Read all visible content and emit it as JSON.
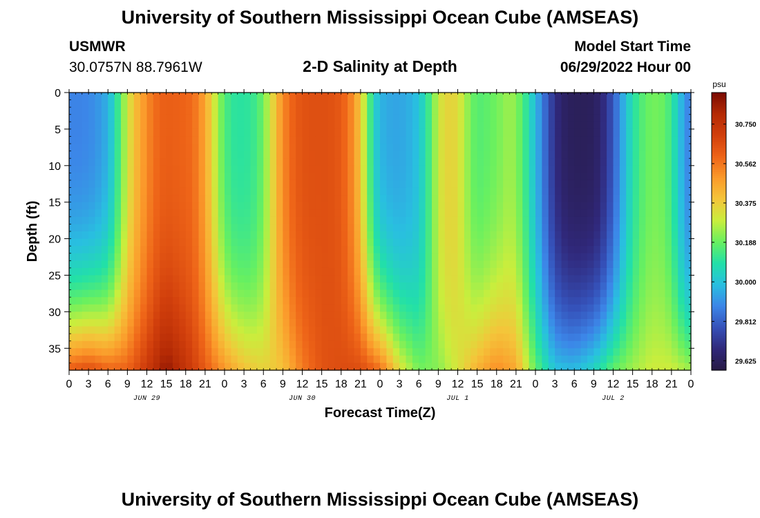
{
  "header": {
    "title": "University of Southern Mississippi Ocean Cube (AMSEAS)",
    "station_name": "USMWR",
    "station_coords": "30.0757N  88.7961W",
    "plot_title": "2-D Salinity at Depth",
    "model_start_label": "Model Start Time",
    "model_start_value": "06/29/2022 Hour 00"
  },
  "footer": {
    "title": "University of Southern Mississippi Ocean Cube (AMSEAS)"
  },
  "colors": {
    "colormap": [
      "#271a45",
      "#30287a",
      "#3551b9",
      "#3c86e8",
      "#29bfe0",
      "#22e0a8",
      "#68f060",
      "#c9ee3d",
      "#f4c53a",
      "#fb9a2b",
      "#ee6418",
      "#d13f0c",
      "#b42a05",
      "#7a0b02"
    ]
  },
  "chart_data": {
    "type": "heatmap",
    "title": "2-D Salinity at Depth",
    "xlabel": "Forecast Time(Z)",
    "ylabel": "Depth (ft)",
    "x_range_hours": [
      0,
      96
    ],
    "y_range_ft": [
      0,
      38
    ],
    "x_ticks_hours": [
      0,
      3,
      6,
      9,
      12,
      15,
      18,
      21,
      24,
      27,
      30,
      33,
      36,
      39,
      42,
      45,
      48,
      51,
      54,
      57,
      60,
      63,
      66,
      69,
      72,
      75,
      78,
      81,
      84,
      87,
      90,
      93,
      96
    ],
    "x_tick_labels": [
      "0",
      "3",
      "6",
      "9",
      "12",
      "15",
      "18",
      "21",
      "0",
      "3",
      "6",
      "9",
      "12",
      "15",
      "18",
      "21",
      "0",
      "3",
      "6",
      "9",
      "12",
      "15",
      "18",
      "21",
      "0",
      "3",
      "6",
      "9",
      "12",
      "15",
      "18",
      "21",
      "0"
    ],
    "date_labels": [
      {
        "hour": 12,
        "label": "JUN 29"
      },
      {
        "hour": 36,
        "label": "JUN 30"
      },
      {
        "hour": 60,
        "label": "JUL 1"
      },
      {
        "hour": 84,
        "label": "JUL 2"
      }
    ],
    "y_ticks_ft": [
      0,
      5,
      10,
      15,
      20,
      25,
      30,
      35
    ],
    "y_tick_labels": [
      "0",
      "5",
      "10",
      "15",
      "20",
      "25",
      "30",
      "35"
    ],
    "colorbar": {
      "unit": "psu",
      "range": [
        29.58,
        30.9
      ],
      "tick_values": [
        29.625,
        29.812,
        30.0,
        30.188,
        30.375,
        30.562,
        30.75
      ],
      "tick_labels": [
        "29.625",
        "29.812",
        "30.000",
        "30.188",
        "30.375",
        "30.562",
        "30.750"
      ]
    },
    "surface_profile": {
      "hours": [
        0,
        2,
        4,
        6,
        7,
        8,
        9,
        10,
        11,
        12,
        13,
        14,
        15,
        16,
        17,
        18,
        19,
        20,
        21,
        22,
        23,
        24,
        25,
        26,
        27,
        28,
        29,
        30,
        31,
        32,
        33,
        34,
        35,
        36,
        37,
        38,
        39,
        40,
        41,
        42,
        43,
        44,
        45,
        46,
        47,
        48,
        49,
        50,
        51,
        52,
        53,
        54,
        55,
        56,
        57,
        58,
        59,
        60,
        61,
        62,
        63,
        64,
        65,
        66,
        67,
        68,
        69,
        70,
        71,
        72,
        73,
        74,
        75,
        76,
        77,
        78,
        79,
        80,
        81,
        82,
        83,
        84,
        85,
        86,
        87,
        88,
        89,
        90,
        91,
        92,
        93,
        94,
        95,
        96
      ],
      "values": [
        29.88,
        29.88,
        29.9,
        29.96,
        30.06,
        30.18,
        30.3,
        30.4,
        30.46,
        30.52,
        30.57,
        30.6,
        30.61,
        30.61,
        30.6,
        30.6,
        30.58,
        30.54,
        30.46,
        30.36,
        30.24,
        30.16,
        30.11,
        30.1,
        30.1,
        30.11,
        30.14,
        30.2,
        30.3,
        30.42,
        30.52,
        30.58,
        30.62,
        30.64,
        30.65,
        30.65,
        30.65,
        30.65,
        30.64,
        30.62,
        30.57,
        30.5,
        30.38,
        30.22,
        30.05,
        29.97,
        29.95,
        29.94,
        29.94,
        29.95,
        29.97,
        30.0,
        30.08,
        30.18,
        30.3,
        30.35,
        30.36,
        30.34,
        30.27,
        30.2,
        30.16,
        30.17,
        30.18,
        30.2,
        30.22,
        30.25,
        30.22,
        30.16,
        30.07,
        29.98,
        29.88,
        29.78,
        29.7,
        29.65,
        29.63,
        29.62,
        29.62,
        29.62,
        29.63,
        29.66,
        29.72,
        29.8,
        29.9,
        30.0,
        30.08,
        30.14,
        30.18,
        30.2,
        30.2,
        30.18,
        30.12,
        30.02,
        29.92,
        29.86
      ]
    },
    "bottom_profile": {
      "hours": [
        0,
        3,
        6,
        9,
        12,
        15,
        18,
        21,
        24,
        27,
        30,
        33,
        36,
        39,
        42,
        45,
        48,
        51,
        54,
        57,
        60,
        63,
        66,
        69,
        72,
        75,
        78,
        81,
        84,
        87,
        90,
        93,
        96
      ],
      "values": [
        30.62,
        30.66,
        30.6,
        30.6,
        30.72,
        30.86,
        30.75,
        30.62,
        30.5,
        30.4,
        30.36,
        30.4,
        30.55,
        30.64,
        30.66,
        30.66,
        30.58,
        30.34,
        30.2,
        30.22,
        30.32,
        30.44,
        30.52,
        30.46,
        30.18,
        30.0,
        29.98,
        30.05,
        30.18,
        30.25,
        30.3,
        30.3,
        30.25
      ]
    }
  }
}
